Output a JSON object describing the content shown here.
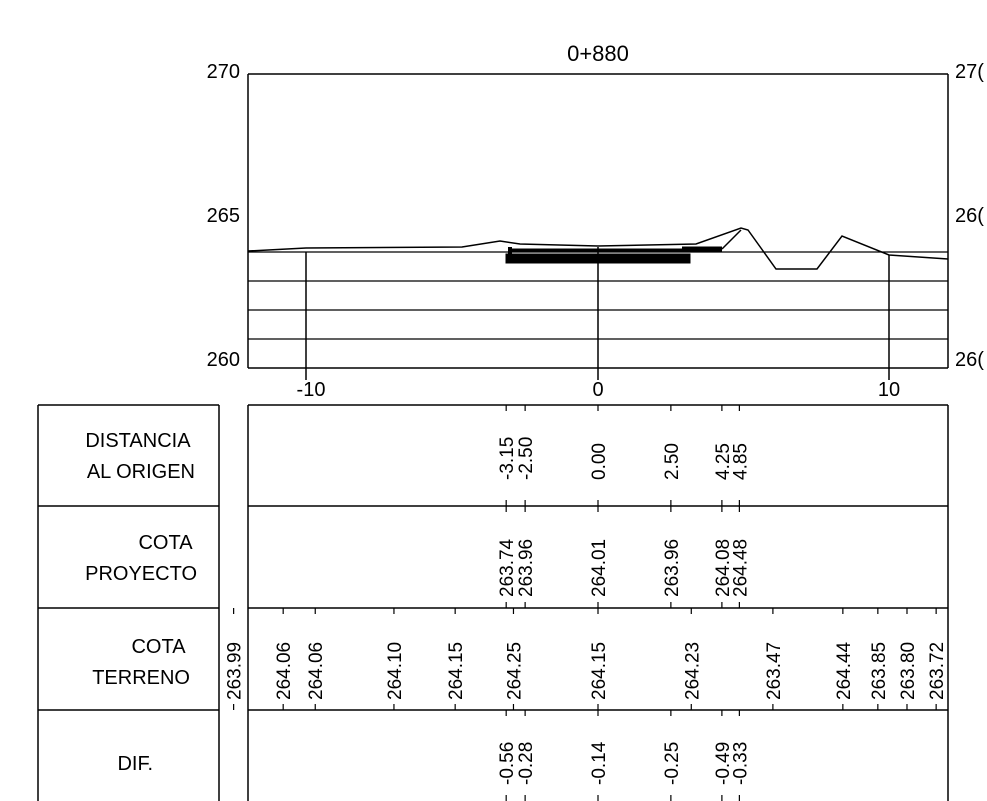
{
  "section": {
    "title": "0+880"
  },
  "elevation_axis": {
    "left_labels": [
      "270",
      "265",
      "260"
    ],
    "right_labels": [
      "27(",
      "26(",
      "26("
    ],
    "values": [
      270,
      265,
      260
    ]
  },
  "offset_axis": {
    "labels": [
      "-10",
      "0",
      "10"
    ],
    "values": [
      -10,
      0,
      10
    ]
  },
  "table": {
    "rows": [
      {
        "label_lines": [
          "DISTANCIA",
          "AL ORIGEN"
        ]
      },
      {
        "label_lines": [
          "COTA",
          "PROYECTO"
        ]
      },
      {
        "label_lines": [
          "COTA",
          "TERRENO"
        ]
      },
      {
        "label_lines": [
          "DIF."
        ]
      }
    ],
    "distancia_al_origen": [
      {
        "offset": -3.15,
        "text": "-3.15"
      },
      {
        "offset": -2.5,
        "text": "-2.50"
      },
      {
        "offset": 0.0,
        "text": "0.00"
      },
      {
        "offset": 2.5,
        "text": "2.50"
      },
      {
        "offset": 4.25,
        "text": "4.25"
      },
      {
        "offset": 4.85,
        "text": "4.85"
      }
    ],
    "cota_proyecto": [
      {
        "offset": -3.15,
        "text": "263.74"
      },
      {
        "offset": -2.5,
        "text": "263.96"
      },
      {
        "offset": 0.0,
        "text": "264.01"
      },
      {
        "offset": 2.5,
        "text": "263.96"
      },
      {
        "offset": 4.25,
        "text": "264.08"
      },
      {
        "offset": 4.85,
        "text": "264.48"
      }
    ],
    "cota_terreno": [
      {
        "offset": -12.5,
        "text": "263.99"
      },
      {
        "offset": -10.8,
        "text": "264.06"
      },
      {
        "offset": -9.7,
        "text": "264.06"
      },
      {
        "offset": -7.0,
        "text": "264.10"
      },
      {
        "offset": -4.9,
        "text": "264.15"
      },
      {
        "offset": -2.9,
        "text": "264.25"
      },
      {
        "offset": 0.0,
        "text": "264.15"
      },
      {
        "offset": 3.2,
        "text": "264.23"
      },
      {
        "offset": 6.0,
        "text": "263.47"
      },
      {
        "offset": 8.4,
        "text": "264.44"
      },
      {
        "offset": 9.6,
        "text": "263.85"
      },
      {
        "offset": 10.6,
        "text": "263.80"
      },
      {
        "offset": 11.6,
        "text": "263.72"
      }
    ],
    "dif": [
      {
        "offset": -3.15,
        "text": "-0.56"
      },
      {
        "offset": -2.5,
        "text": "-0.28"
      },
      {
        "offset": 0.0,
        "text": "-0.14"
      },
      {
        "offset": 2.5,
        "text": "-0.25"
      },
      {
        "offset": 4.25,
        "text": "-0.49"
      },
      {
        "offset": 4.85,
        "text": "-0.33"
      }
    ]
  }
}
